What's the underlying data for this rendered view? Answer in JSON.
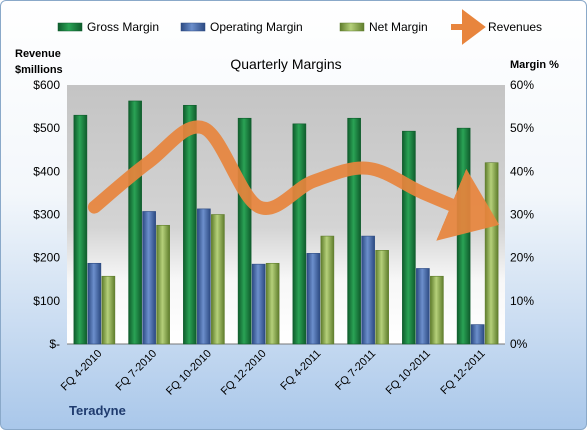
{
  "chart_data": {
    "type": "bar",
    "title": "Quarterly Margins",
    "company": "Teradyne",
    "left_axis_title": [
      "Revenue",
      "$millions"
    ],
    "right_axis_title": "Margin %",
    "categories": [
      "FQ 4-2010",
      "FQ 7-2010",
      "FQ 10-2010",
      "FQ 12-2010",
      "FQ 4-2011",
      "FQ 7-2011",
      "FQ 10-2011",
      "FQ 12-2011"
    ],
    "y_left_ticks": [
      "$-",
      "$100",
      "$200",
      "$300",
      "$400",
      "$500",
      "$600"
    ],
    "y_right_ticks": [
      "0%",
      "10%",
      "20%",
      "30%",
      "40%",
      "50%",
      "60%"
    ],
    "ylim_left": [
      0,
      600
    ],
    "ylim_right": [
      0,
      60
    ],
    "grid": false,
    "legend_position": "top",
    "series": [
      {
        "name": "Gross Margin",
        "kind": "bar",
        "axis": "right",
        "color": "#1f8a45",
        "values": [
          53.0,
          56.3,
          55.3,
          52.3,
          51.0,
          52.3,
          49.3,
          50.0
        ]
      },
      {
        "name": "Operating Margin",
        "kind": "bar",
        "axis": "right",
        "color": "#4a6fb0",
        "values": [
          18.7,
          30.7,
          31.3,
          18.5,
          21.0,
          25.0,
          17.5,
          4.5
        ]
      },
      {
        "name": "Net Margin",
        "kind": "bar",
        "axis": "right",
        "color": "#9bbb59",
        "values": [
          15.7,
          27.5,
          30.0,
          18.7,
          25.0,
          21.7,
          15.7,
          42.0
        ]
      },
      {
        "name": "Revenues",
        "kind": "line",
        "axis": "left",
        "color": "#e8853d",
        "values": [
          317,
          422,
          500,
          318,
          377,
          407,
          350,
          297
        ]
      }
    ]
  }
}
